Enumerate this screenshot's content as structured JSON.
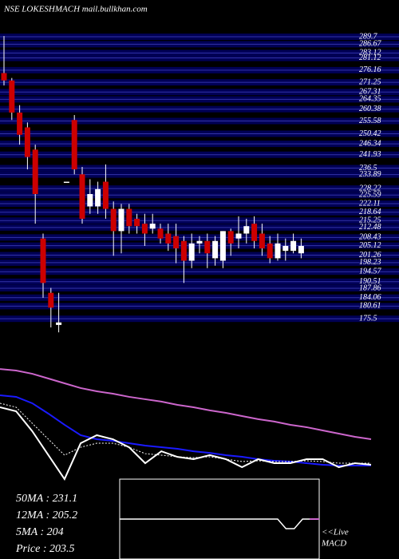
{
  "chart_data": {
    "type": "candlestick",
    "title": "NSE LOKESHMACH mail.bullkhan.com",
    "ylim": [
      172,
      291
    ],
    "yticks": [
      289.7,
      286.67,
      283.12,
      281.12,
      276.16,
      271.25,
      267.31,
      264.35,
      260.38,
      255.58,
      250.42,
      246.34,
      241.93,
      236.5,
      233.89,
      228.22,
      225.59,
      222.11,
      218.64,
      215.25,
      212.48,
      208.43,
      205.12,
      201.26,
      198.23,
      194.57,
      190.51,
      187.86,
      184.06,
      180.61,
      175.5
    ],
    "grid": true,
    "up_color": "#ffffff",
    "down_color": "#cc0000",
    "open": [
      275,
      272,
      259,
      253,
      244,
      208,
      186,
      173,
      231,
      256,
      234,
      221,
      221,
      231,
      220,
      211,
      220,
      216,
      214,
      212,
      212,
      210,
      209,
      207,
      199,
      206,
      207,
      200,
      199,
      211,
      208,
      210,
      214,
      210,
      206,
      200,
      203,
      203,
      202
    ],
    "close": [
      272,
      259,
      250,
      241,
      226,
      190,
      180,
      174,
      231,
      236,
      216,
      226,
      228,
      220,
      211,
      220,
      213,
      213,
      210,
      214,
      208,
      206,
      204,
      199,
      206,
      207,
      202,
      207,
      211,
      206,
      210,
      213,
      207,
      204,
      200,
      206,
      205,
      207,
      205
    ],
    "high": [
      290,
      273,
      262,
      255,
      246,
      210,
      188,
      186,
      231,
      258,
      237,
      232,
      231,
      238,
      223,
      222,
      222,
      218,
      218,
      218,
      214,
      214,
      214,
      209,
      210,
      209,
      210,
      209,
      211,
      212,
      217,
      216,
      217,
      214,
      209,
      210,
      208,
      210,
      208
    ],
    "low": [
      270,
      256,
      246,
      236,
      214,
      184,
      172,
      170,
      231,
      234,
      214,
      218,
      218,
      216,
      201,
      202,
      210,
      210,
      205,
      210,
      206,
      203,
      198,
      190,
      196,
      202,
      196,
      197,
      196,
      201,
      204,
      206,
      204,
      201,
      198,
      199,
      199,
      202,
      200
    ],
    "ma_panel": {
      "ylim": [
        150,
        290
      ],
      "series": [
        {
          "name": "50MA",
          "color": "#cc66cc",
          "values": [
            259.0,
            257.6,
            254.6,
            250.2,
            245.8,
            241.4,
            238.4,
            236.2,
            233.3,
            231.1,
            228.9,
            225.9,
            223.7,
            220.8,
            218.5,
            215.6,
            212.7,
            210.5,
            207.5,
            205.3,
            202.3,
            199.4,
            196.4,
            194.2
          ]
        },
        {
          "name": "12MA",
          "color": "#1a1aff",
          "values": [
            234.7,
            233.3,
            227.4,
            217.8,
            207.5,
            197.9,
            194.2,
            192.7,
            190.5,
            188.3,
            186.8,
            185.4,
            183.1,
            181.6,
            179.5,
            178.0,
            175.8,
            174.3,
            173.6,
            172.1,
            170.6,
            169.9,
            169.9,
            169.9
          ]
        },
        {
          "name": "5MA",
          "color": "#ffffff",
          "dashed": true,
          "values": [
            227.4,
            223.7,
            208.9,
            194.2,
            179.5,
            186.8,
            190.5,
            190.5,
            186.8,
            180.9,
            179.5,
            178.0,
            177.2,
            178.0,
            175.8,
            173.6,
            174.3,
            173.6,
            173.6,
            174.3,
            173.6,
            172.1,
            172.1,
            172.1
          ]
        },
        {
          "name": "Price",
          "color": "#ffffff",
          "values": [
            223.7,
            220.0,
            201.6,
            179.5,
            157.4,
            190.5,
            197.9,
            194.2,
            186.8,
            172.1,
            183.1,
            177.9,
            175.8,
            179.5,
            175.8,
            168.4,
            175.8,
            172.1,
            172.1,
            175.8,
            175.8,
            168.4,
            172.1,
            170.6
          ]
        }
      ]
    },
    "legend_lines": [
      "50MA : 231.1",
      "12MA : 205.2",
      "5MA : 204",
      "Price   : 203.5"
    ],
    "macd": {
      "ylim": [
        -1,
        1
      ],
      "values": [
        0,
        0,
        0,
        0,
        0,
        0,
        0,
        0,
        0,
        0,
        0,
        0,
        0,
        0,
        0,
        0,
        0,
        0,
        0,
        0,
        -0.3,
        -0.3,
        0,
        0,
        0
      ]
    },
    "macd_label": [
      "<<Live",
      "MACD"
    ]
  }
}
